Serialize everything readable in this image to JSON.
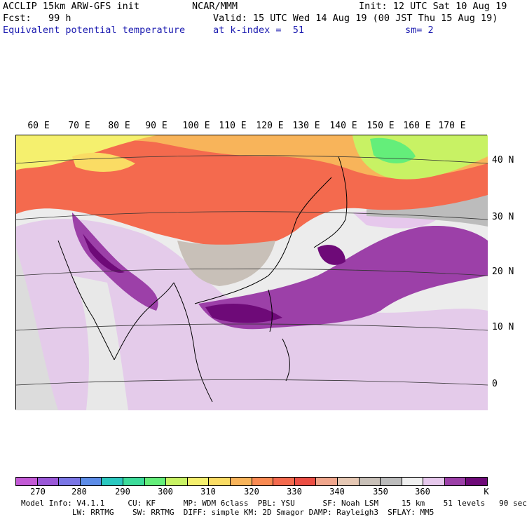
{
  "header": {
    "line1_left": "ACCLIP 15km ARW-GFS init",
    "line1_mid": "NCAR/MMM",
    "line1_right": "Init: 12 UTC Sat 10 Aug 19",
    "line2_left": "Fcst:   99 h",
    "line2_right": "Valid: 15 UTC Wed 14 Aug 19 (00 JST Thu 15 Aug 19)",
    "line3_left": "Equivalent potential temperature",
    "line3_mid": "at k-index =  51",
    "line3_right": "sm= 2"
  },
  "map": {
    "lon_labels": [
      "60 E",
      "70 E",
      "80 E",
      "90 E",
      "100 E",
      "110 E",
      "120 E",
      "130 E",
      "140 E",
      "150 E",
      "160 E",
      "170 E"
    ],
    "lat_labels": [
      "40 N",
      "30 N",
      "20 N",
      "10 N",
      "0"
    ]
  },
  "colorbar": {
    "colors": [
      "#c35ad6",
      "#9a58d8",
      "#7a76e6",
      "#5c8ce8",
      "#2ac8c0",
      "#3cdc9a",
      "#64ee7a",
      "#c8f264",
      "#f5f06e",
      "#fadc64",
      "#f8b45a",
      "#f98a52",
      "#f46a4e",
      "#ec4e44",
      "#f0a68c",
      "#e6c8b4",
      "#c8c0b8",
      "#bcbcbc",
      "#f0f0f0",
      "#e6c8ec",
      "#9c40a8",
      "#6e0a78"
    ],
    "ticks": [
      "270",
      "280",
      "290",
      "300",
      "310",
      "320",
      "330",
      "340",
      "350",
      "360",
      "K"
    ]
  },
  "footer": {
    "line1": "Model Info: V4.1.1     CU: KF      MP: WDM 6class  PBL: YSU      SF: Noah LSM     15 km    51 levels   90 sec",
    "line2": "           LW: RRTMG    SW: RRTMG  DIFF: simple KM: 2D Smagor DAMP: Rayleigh3  SFLAY: MM5"
  }
}
